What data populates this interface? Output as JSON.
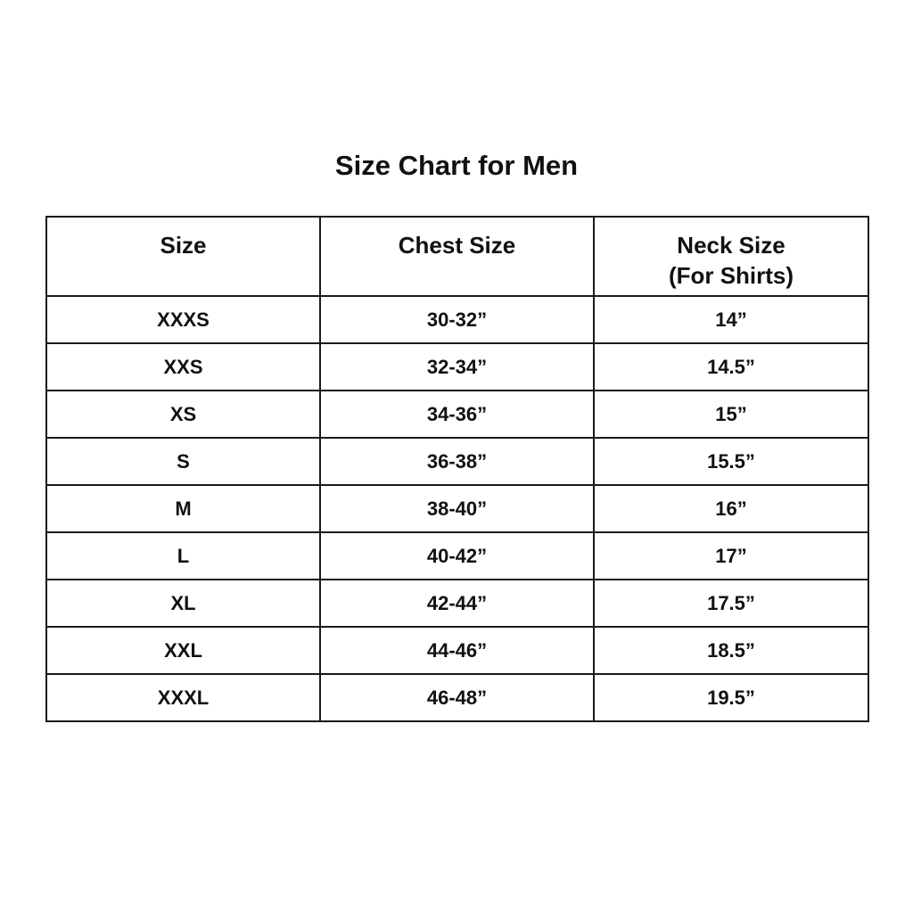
{
  "title": "Size Chart for Men",
  "table": {
    "headers": [
      "Size",
      "Chest Size",
      "Neck Size",
      "(For Shirts)"
    ],
    "rows": [
      [
        "XXXS",
        "30-32”",
        "14”"
      ],
      [
        "XXS",
        "32-34”",
        "14.5”"
      ],
      [
        "XS",
        "34-36”",
        "15”"
      ],
      [
        "S",
        "36-38”",
        "15.5”"
      ],
      [
        "M",
        "38-40”",
        "16”"
      ],
      [
        "L",
        "40-42”",
        "17”"
      ],
      [
        "XL",
        "42-44”",
        "17.5”"
      ],
      [
        "XXL",
        "44-46”",
        "18.5”"
      ],
      [
        "XXXL",
        "46-48”",
        "19.5”"
      ]
    ]
  }
}
